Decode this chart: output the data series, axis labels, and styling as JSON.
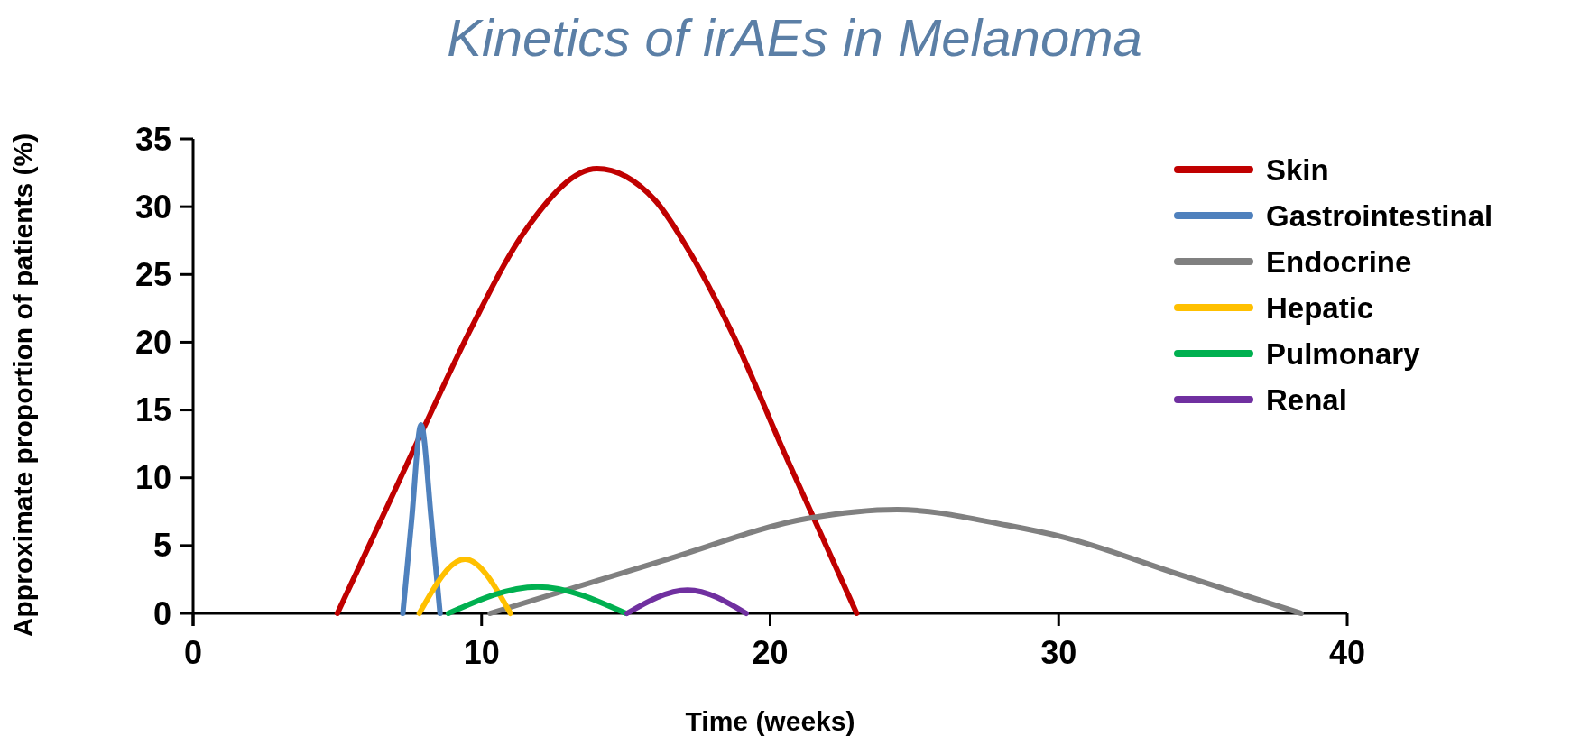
{
  "chart_data": {
    "type": "line",
    "title": "Kinetics of irAEs in Melanoma",
    "xlabel": "Time (weeks)",
    "ylabel": "Approximate proportion of patients (%)",
    "xlim": [
      0,
      40
    ],
    "xticks": [
      0,
      10,
      20,
      30,
      40
    ],
    "ylim": [
      0,
      35
    ],
    "yticks": [
      0,
      5,
      10,
      15,
      20,
      25,
      30,
      35
    ],
    "grid": false,
    "legend": "top right",
    "marker": "none",
    "line_style": "solid",
    "series": [
      {
        "name": "Skin",
        "color": "#c00000",
        "x": [
          5.0,
          6.1,
          8.0,
          9.7,
          11.5,
          14.0,
          16.0,
          17.2,
          18.7,
          20.5,
          23.0
        ],
        "values": [
          0,
          5.0,
          13.7,
          21.3,
          28.2,
          32.8,
          30.5,
          26.7,
          20.6,
          11.8,
          0
        ]
      },
      {
        "name": "Gastrointestinal",
        "color": "#4f81bd",
        "x": [
          7.27,
          7.57,
          7.9,
          8.26,
          8.56
        ],
        "values": [
          0,
          6.8,
          13.9,
          6.8,
          0
        ]
      },
      {
        "name": "Endocrine",
        "color": "#808080",
        "x": [
          10.3,
          16.3,
          21.3,
          24.4,
          28.2,
          30.2,
          34.2,
          38.4
        ],
        "values": [
          0,
          3.9,
          7.0,
          7.65,
          6.5,
          5.6,
          2.85,
          0
        ]
      },
      {
        "name": "Hepatic",
        "color": "#ffc000",
        "x": [
          7.84,
          9.42,
          11.0
        ],
        "values": [
          0,
          4.0,
          0
        ]
      },
      {
        "name": "Pulmonary",
        "color": "#00b050",
        "x": [
          8.85,
          11.94,
          15.0
        ],
        "values": [
          0,
          1.95,
          0
        ]
      },
      {
        "name": "Renal",
        "color": "#7030a0",
        "x": [
          15.04,
          17.14,
          19.17
        ],
        "values": [
          0,
          1.72,
          0
        ]
      }
    ]
  }
}
